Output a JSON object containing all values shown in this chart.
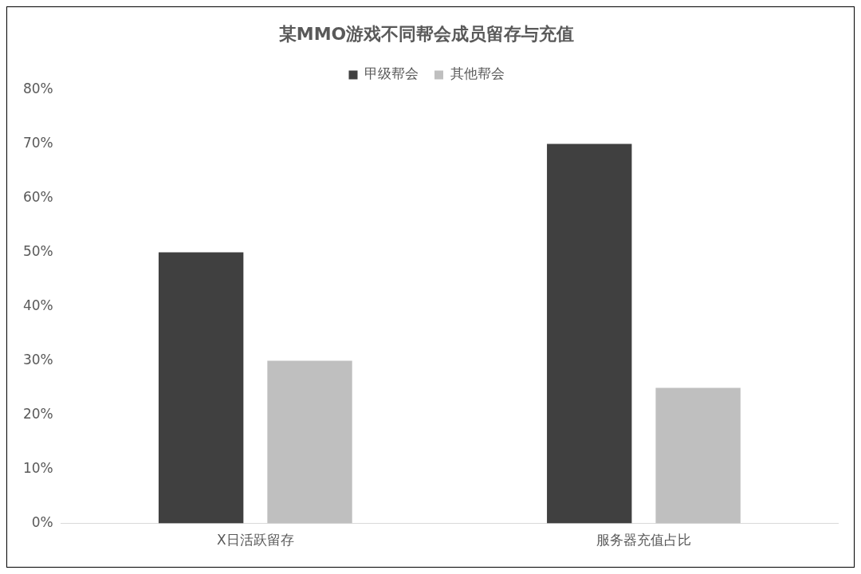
{
  "chart_data": {
    "type": "bar",
    "title": "某MMO游戏不同帮会成员留存与充值",
    "categories": [
      "X日活跃留存",
      "服务器充值占比"
    ],
    "series": [
      {
        "name": "甲级帮会",
        "color": "#404040",
        "values": [
          50,
          70
        ]
      },
      {
        "name": "其他帮会",
        "color": "#bfbfbf",
        "values": [
          30,
          25
        ]
      }
    ],
    "ylim": [
      0,
      80
    ],
    "yticks": [
      {
        "value": 0,
        "label": "0%"
      },
      {
        "value": 10,
        "label": "10%"
      },
      {
        "value": 20,
        "label": "20%"
      },
      {
        "value": 30,
        "label": "30%"
      },
      {
        "value": 40,
        "label": "40%"
      },
      {
        "value": 50,
        "label": "50%"
      },
      {
        "value": 60,
        "label": "60%"
      },
      {
        "value": 70,
        "label": "70%"
      },
      {
        "value": 80,
        "label": "80%"
      }
    ],
    "grid": false,
    "legend": "top"
  }
}
